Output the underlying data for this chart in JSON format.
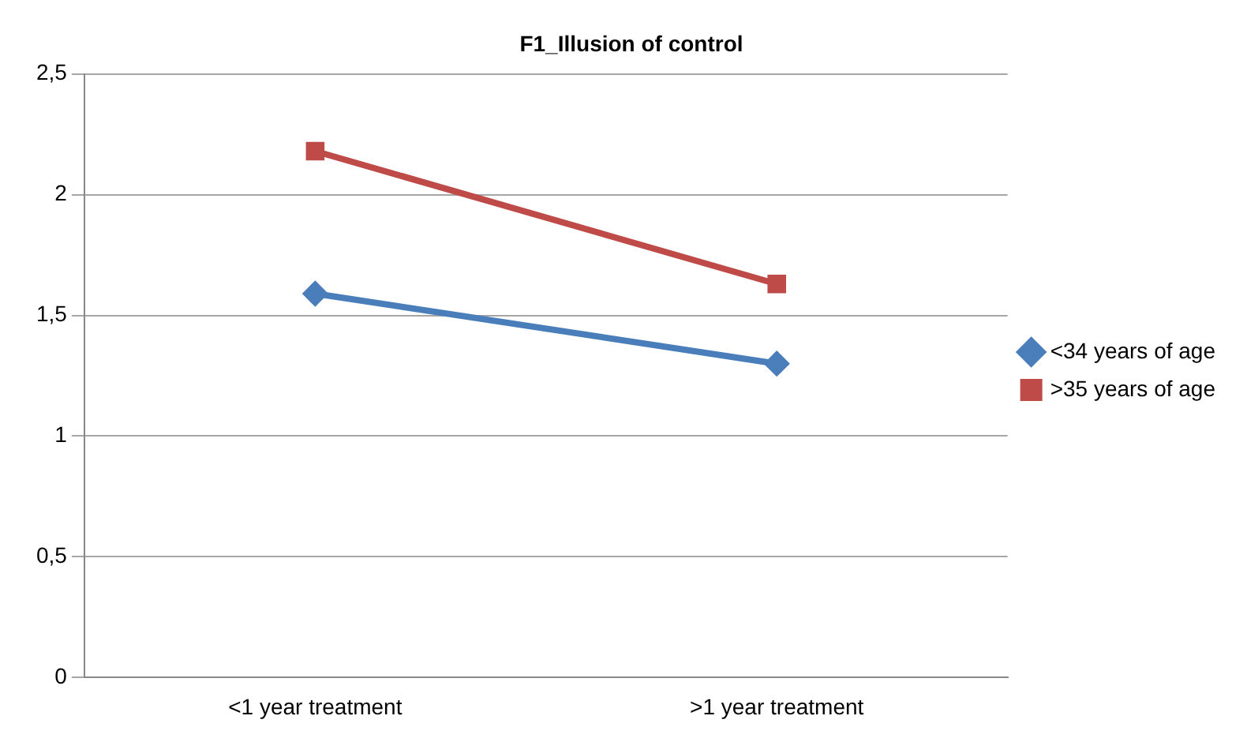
{
  "chart_data": {
    "type": "line",
    "title": "F1_Illusion of control",
    "categories": [
      "<1 year treatment",
      ">1 year treatment"
    ],
    "series": [
      {
        "name": "<34 years of age",
        "color": "#4a7ebb",
        "values": [
          1.59,
          1.3
        ],
        "marker": "diamond"
      },
      {
        "name": ">35 years of age",
        "color": "#be4b48",
        "values": [
          2.18,
          1.63
        ],
        "marker": "square"
      }
    ],
    "ylim": [
      0,
      2.5
    ],
    "yticks": [
      0,
      {
        "value": 0.5,
        "label": "0,5"
      },
      1,
      {
        "value": 1.5,
        "label": "1,5"
      },
      2,
      {
        "value": 2.5,
        "label": "2,5"
      }
    ],
    "grid": "y",
    "legend": "right",
    "line_style": "solid"
  }
}
